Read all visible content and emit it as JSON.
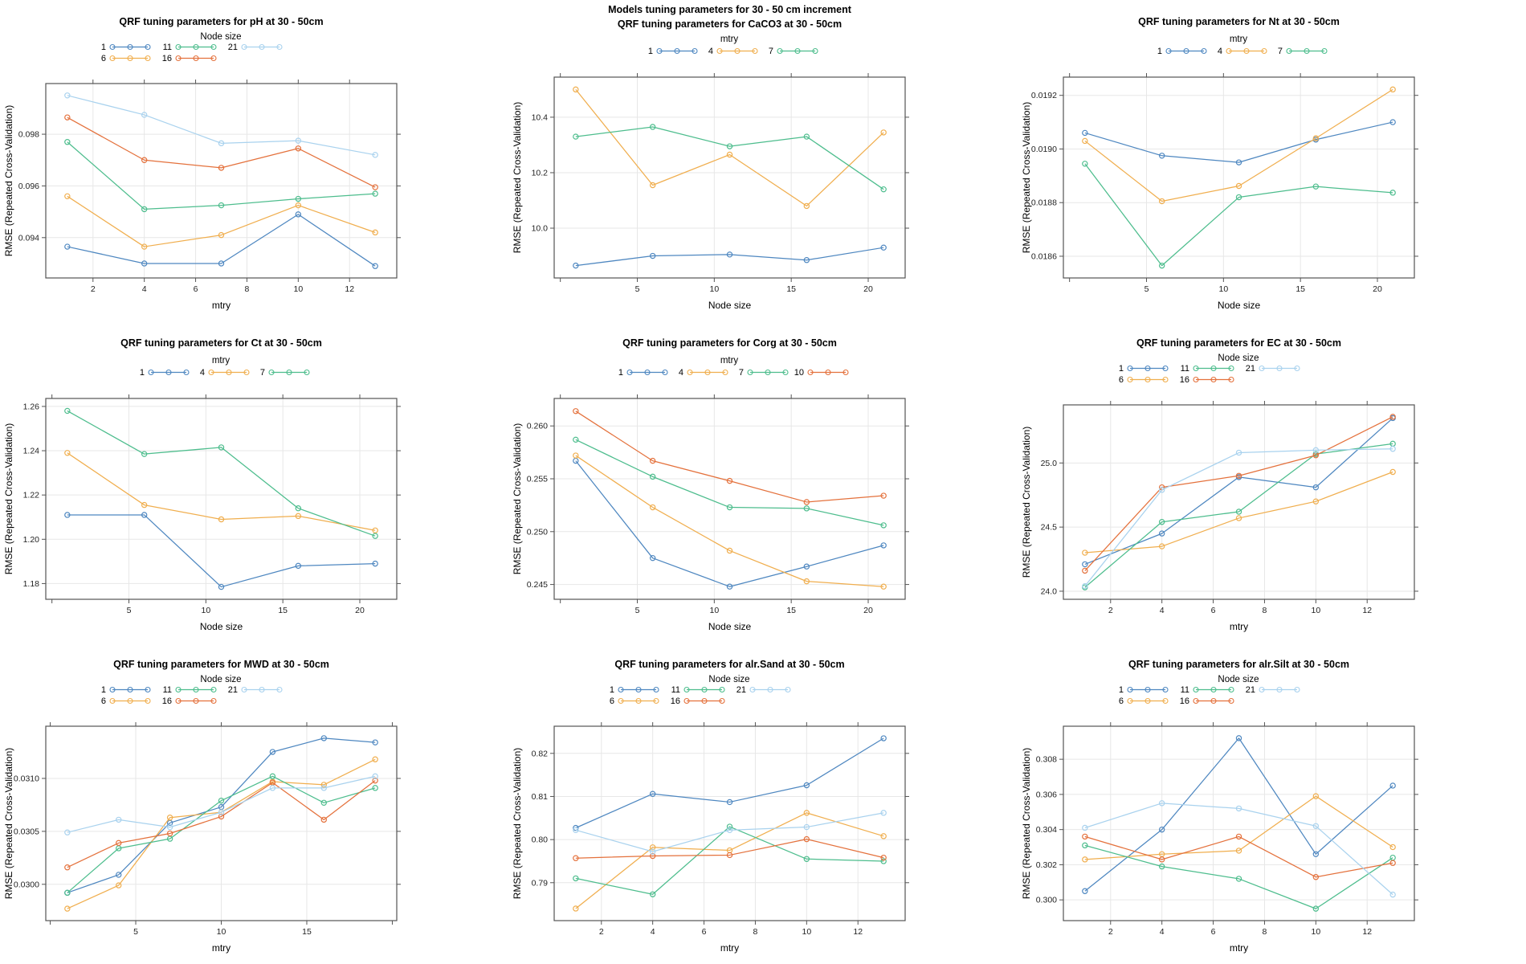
{
  "figure": {
    "ylabel": "RMSE (Repeated Cross-Validation)"
  },
  "colors": {
    "series": [
      "#4E87C0",
      "#F0AE4E",
      "#4DBD8D",
      "#E4713C",
      "#A9D2EE"
    ],
    "grid": "#E7E7E7",
    "box": "#545454",
    "title_text": "#000000",
    "tick_text": "#1F1F1F"
  },
  "chart_data": [
    {
      "key": "pH",
      "type": "line",
      "title": "QRF tuning parameters for pH at 30 - 50cm",
      "xlabel": "mtry",
      "ylabel": "RMSE (Repeated Cross-Validation)",
      "legend": {
        "title": "Node size",
        "rows": 2,
        "entries": [
          "1",
          "6",
          "11",
          "16",
          "21"
        ]
      },
      "x": [
        1,
        4,
        7,
        10,
        13
      ],
      "xlim": [
        0.16,
        13.84
      ],
      "xticks": [
        2,
        4,
        6,
        8,
        10,
        12
      ],
      "xtick_labels": [
        "2",
        "4",
        "6",
        "8",
        "10",
        "12"
      ],
      "xticks_unlabeled": [],
      "ylim": [
        0.09244,
        0.09996
      ],
      "yticks": [
        0.094,
        0.096,
        0.098
      ],
      "ytick_labels": [
        "0.094",
        "0.096",
        "0.098"
      ],
      "series": [
        {
          "name": "1",
          "values": [
            0.09365,
            0.093,
            0.093,
            0.0949,
            0.0929
          ]
        },
        {
          "name": "6",
          "values": [
            0.0956,
            0.09365,
            0.0941,
            0.09525,
            0.0942
          ]
        },
        {
          "name": "11",
          "values": [
            0.0977,
            0.0951,
            0.09525,
            0.0955,
            0.0957
          ]
        },
        {
          "name": "16",
          "values": [
            0.09865,
            0.097,
            0.0967,
            0.09745,
            0.09595
          ]
        },
        {
          "name": "21",
          "values": [
            0.0995,
            0.09875,
            0.09765,
            0.09775,
            0.0972
          ]
        }
      ]
    },
    {
      "key": "CaCO3",
      "type": "line",
      "super_title": "Models tuning parameters for 30 - 50 cm increment",
      "title": "QRF tuning parameters for CaCO3 at 30 - 50cm",
      "xlabel": "Node size",
      "ylabel": "RMSE (Repeated Cross-Validation)",
      "legend": {
        "title": "mtry",
        "rows": 1,
        "entries": [
          "1",
          "4",
          "7"
        ]
      },
      "x": [
        1,
        6,
        11,
        16,
        21
      ],
      "xlim": [
        -0.4,
        22.4
      ],
      "xticks": [
        5,
        10,
        15,
        20
      ],
      "xtick_labels": [
        "5",
        "10",
        "15",
        "20"
      ],
      "xticks_unlabeled": [
        0
      ],
      "ylim": [
        9.8205,
        10.5445
      ],
      "yticks": [
        10.0,
        10.2,
        10.4
      ],
      "ytick_labels": [
        "10.0",
        "10.2",
        "10.4"
      ],
      "series": [
        {
          "name": "1",
          "values": [
            9.865,
            9.9,
            9.905,
            9.885,
            9.93
          ]
        },
        {
          "name": "4",
          "values": [
            10.5,
            10.155,
            10.265,
            10.08,
            10.345
          ]
        },
        {
          "name": "7",
          "values": [
            10.33,
            10.365,
            10.295,
            10.33,
            10.14
          ]
        }
      ]
    },
    {
      "key": "Nt",
      "type": "line",
      "title": "QRF tuning parameters for Nt at 30 - 50cm",
      "xlabel": "Node size",
      "ylabel": "RMSE (Repeated Cross-Validation)",
      "legend": {
        "title": "mtry",
        "rows": 1,
        "entries": [
          "1",
          "4",
          "7"
        ]
      },
      "x": [
        1,
        6,
        11,
        16,
        21
      ],
      "xlim": [
        -0.4,
        22.4
      ],
      "xticks": [
        5,
        10,
        15,
        20
      ],
      "xtick_labels": [
        "5",
        "10",
        "15",
        "20"
      ],
      "xticks_unlabeled": [
        0
      ],
      "ylim": [
        0.018519,
        0.019268
      ],
      "yticks": [
        0.0186,
        0.0188,
        0.019,
        0.0192
      ],
      "ytick_labels": [
        "0.0186",
        "0.0188",
        "0.0190",
        "0.0192"
      ],
      "series": [
        {
          "name": "1",
          "values": [
            0.01906,
            0.018975,
            0.01895,
            0.019035,
            0.0191
          ]
        },
        {
          "name": "4",
          "values": [
            0.01903,
            0.018805,
            0.018862,
            0.01904,
            0.019222
          ]
        },
        {
          "name": "7",
          "values": [
            0.018945,
            0.018565,
            0.01882,
            0.01886,
            0.018837
          ]
        }
      ]
    },
    {
      "key": "Ct",
      "type": "line",
      "title": "QRF tuning parameters for Ct at 30 - 50cm",
      "xlabel": "Node size",
      "ylabel": "RMSE (Repeated Cross-Validation)",
      "legend": {
        "title": "mtry",
        "rows": 1,
        "entries": [
          "1",
          "4",
          "7"
        ]
      },
      "x": [
        1,
        6,
        11,
        16,
        21
      ],
      "xlim": [
        -0.4,
        22.4
      ],
      "xticks": [
        5,
        10,
        15,
        20
      ],
      "xtick_labels": [
        "5",
        "10",
        "15",
        "20"
      ],
      "xticks_unlabeled": [
        0
      ],
      "ylim": [
        1.1729,
        1.2636
      ],
      "yticks": [
        1.18,
        1.2,
        1.22,
        1.24,
        1.26
      ],
      "ytick_labels": [
        "1.18",
        "1.20",
        "1.22",
        "1.24",
        "1.26"
      ],
      "series": [
        {
          "name": "1",
          "values": [
            1.211,
            1.211,
            1.1785,
            1.188,
            1.189
          ]
        },
        {
          "name": "4",
          "values": [
            1.239,
            1.2155,
            1.209,
            1.2105,
            1.204
          ]
        },
        {
          "name": "7",
          "values": [
            1.258,
            1.2385,
            1.2415,
            1.214,
            1.2015
          ]
        }
      ]
    },
    {
      "key": "Corg",
      "type": "line",
      "title": "QRF tuning parameters for Corg at 30 - 50cm",
      "xlabel": "Node size",
      "ylabel": "RMSE (Repeated Cross-Validation)",
      "legend": {
        "title": "mtry",
        "rows": 1,
        "entries": [
          "1",
          "4",
          "7",
          "10"
        ]
      },
      "x": [
        1,
        6,
        11,
        16,
        21
      ],
      "xlim": [
        -0.4,
        22.4
      ],
      "xticks": [
        5,
        10,
        15,
        20
      ],
      "xtick_labels": [
        "5",
        "10",
        "15",
        "20"
      ],
      "xticks_unlabeled": [
        0
      ],
      "ylim": [
        0.2436,
        0.2626
      ],
      "yticks": [
        0.245,
        0.25,
        0.255,
        0.26
      ],
      "ytick_labels": [
        "0.245",
        "0.250",
        "0.255",
        "0.260"
      ],
      "series": [
        {
          "name": "1",
          "values": [
            0.2567,
            0.2475,
            0.2448,
            0.2467,
            0.2487
          ]
        },
        {
          "name": "4",
          "values": [
            0.2572,
            0.2523,
            0.2482,
            0.2453,
            0.2448
          ]
        },
        {
          "name": "7",
          "values": [
            0.2587,
            0.2552,
            0.2523,
            0.2522,
            0.2506
          ]
        },
        {
          "name": "10",
          "values": [
            0.2614,
            0.2567,
            0.2548,
            0.2528,
            0.2534
          ]
        }
      ]
    },
    {
      "key": "EC",
      "type": "line",
      "title": "QRF tuning parameters for EC at 30 - 50cm",
      "xlabel": "mtry",
      "ylabel": "RMSE (Repeated Cross-Validation)",
      "legend": {
        "title": "Node size",
        "rows": 2,
        "entries": [
          "1",
          "6",
          "11",
          "16",
          "21"
        ]
      },
      "x": [
        1,
        4,
        7,
        10,
        13
      ],
      "xlim": [
        0.16,
        13.84
      ],
      "xticks": [
        2,
        4,
        6,
        8,
        10,
        12
      ],
      "xtick_labels": [
        "2",
        "4",
        "6",
        "8",
        "10",
        "12"
      ],
      "xticks_unlabeled": [],
      "ylim": [
        23.937,
        25.453
      ],
      "yticks": [
        24.0,
        24.5,
        25.0
      ],
      "ytick_labels": [
        "24.0",
        "24.5",
        "25.0"
      ],
      "series": [
        {
          "name": "1",
          "values": [
            24.21,
            24.45,
            24.89,
            24.81,
            25.35
          ]
        },
        {
          "name": "6",
          "values": [
            24.3,
            24.35,
            24.57,
            24.7,
            24.93
          ]
        },
        {
          "name": "11",
          "values": [
            24.03,
            24.54,
            24.62,
            25.07,
            25.15
          ]
        },
        {
          "name": "16",
          "values": [
            24.16,
            24.81,
            24.9,
            25.06,
            25.36
          ]
        },
        {
          "name": "21",
          "values": [
            24.04,
            24.79,
            25.08,
            25.1,
            25.11
          ]
        }
      ]
    },
    {
      "key": "MWD",
      "type": "line",
      "title": "QRF tuning parameters for MWD at 30 - 50cm",
      "xlabel": "mtry",
      "ylabel": "RMSE (Repeated Cross-Validation)",
      "legend": {
        "title": "Node size",
        "rows": 2,
        "entries": [
          "1",
          "6",
          "11",
          "16",
          "21"
        ]
      },
      "x": [
        1,
        4,
        7,
        10,
        13,
        16,
        19
      ],
      "xlim": [
        -0.26,
        20.26
      ],
      "xticks": [
        5,
        10,
        15
      ],
      "xtick_labels": [
        "5",
        "10",
        "15"
      ],
      "xticks_unlabeled": [
        0,
        20
      ],
      "ylim": [
        0.029657,
        0.031493
      ],
      "yticks": [
        0.03,
        0.0305,
        0.031
      ],
      "ytick_labels": [
        "0.0300",
        "0.0305",
        "0.0310"
      ],
      "series": [
        {
          "name": "1",
          "values": [
            0.02992,
            0.03009,
            0.03058,
            0.03073,
            0.03125,
            0.03138,
            0.03134
          ]
        },
        {
          "name": "6",
          "values": [
            0.02977,
            0.02999,
            0.03063,
            0.03068,
            0.03097,
            0.03094,
            0.03118
          ]
        },
        {
          "name": "11",
          "values": [
            0.02992,
            0.03034,
            0.03043,
            0.03079,
            0.03102,
            0.03077,
            0.03091
          ]
        },
        {
          "name": "16",
          "values": [
            0.03016,
            0.03039,
            0.03048,
            0.03064,
            0.03096,
            0.03061,
            0.03098
          ]
        },
        {
          "name": "21",
          "values": [
            0.03049,
            0.03061,
            0.03054,
            0.03068,
            0.03091,
            0.03091,
            0.03102
          ]
        }
      ]
    },
    {
      "key": "alr.Sand",
      "type": "line",
      "title": "QRF tuning parameters for alr.Sand at 30 - 50cm",
      "xlabel": "mtry",
      "ylabel": "RMSE (Repeated Cross-Validation)",
      "legend": {
        "title": "Node size",
        "rows": 2,
        "entries": [
          "1",
          "6",
          "11",
          "16",
          "21"
        ]
      },
      "x": [
        1,
        4,
        7,
        10,
        13
      ],
      "xlim": [
        0.16,
        13.84
      ],
      "xticks": [
        2,
        4,
        6,
        8,
        10,
        12
      ],
      "xtick_labels": [
        "2",
        "4",
        "6",
        "8",
        "10",
        "12"
      ],
      "xticks_unlabeled": [],
      "ylim": [
        0.7812,
        0.8263
      ],
      "yticks": [
        0.79,
        0.8,
        0.81,
        0.82
      ],
      "ytick_labels": [
        "0.79",
        "0.80",
        "0.81",
        "0.82"
      ],
      "series": [
        {
          "name": "1",
          "values": [
            0.8027,
            0.8106,
            0.8087,
            0.8126,
            0.8235
          ]
        },
        {
          "name": "6",
          "values": [
            0.784,
            0.7982,
            0.7975,
            0.8062,
            0.8008
          ]
        },
        {
          "name": "11",
          "values": [
            0.791,
            0.7873,
            0.803,
            0.7955,
            0.795
          ]
        },
        {
          "name": "16",
          "values": [
            0.7957,
            0.7962,
            0.7964,
            0.8001,
            0.7958
          ]
        },
        {
          "name": "21",
          "values": [
            0.8022,
            0.7972,
            0.8022,
            0.8029,
            0.8062
          ]
        }
      ]
    },
    {
      "key": "alr.Silt",
      "type": "line",
      "title": "QRF tuning parameters for alr.Silt at 30 - 50cm",
      "xlabel": "mtry",
      "ylabel": "RMSE (Repeated Cross-Validation)",
      "legend": {
        "title": "Node size",
        "rows": 2,
        "entries": [
          "1",
          "6",
          "11",
          "16",
          "21"
        ]
      },
      "x": [
        1,
        4,
        7,
        10,
        13
      ],
      "xlim": [
        0.16,
        13.84
      ],
      "xticks": [
        2,
        4,
        6,
        8,
        10,
        12
      ],
      "xtick_labels": [
        "2",
        "4",
        "6",
        "8",
        "10",
        "12"
      ],
      "xticks_unlabeled": [],
      "ylim": [
        0.29882,
        0.30988
      ],
      "yticks": [
        0.3,
        0.302,
        0.304,
        0.306,
        0.308
      ],
      "ytick_labels": [
        "0.300",
        "0.302",
        "0.304",
        "0.306",
        "0.308"
      ],
      "series": [
        {
          "name": "1",
          "values": [
            0.3005,
            0.304,
            0.3092,
            0.3026,
            0.3065
          ]
        },
        {
          "name": "6",
          "values": [
            0.3023,
            0.3026,
            0.3028,
            0.3059,
            0.303
          ]
        },
        {
          "name": "11",
          "values": [
            0.3031,
            0.3019,
            0.3012,
            0.2995,
            0.3024
          ]
        },
        {
          "name": "16",
          "values": [
            0.3036,
            0.3023,
            0.3036,
            0.3013,
            0.3021
          ]
        },
        {
          "name": "21",
          "values": [
            0.3041,
            0.3055,
            0.3052,
            0.3042,
            0.3003
          ]
        }
      ]
    }
  ]
}
